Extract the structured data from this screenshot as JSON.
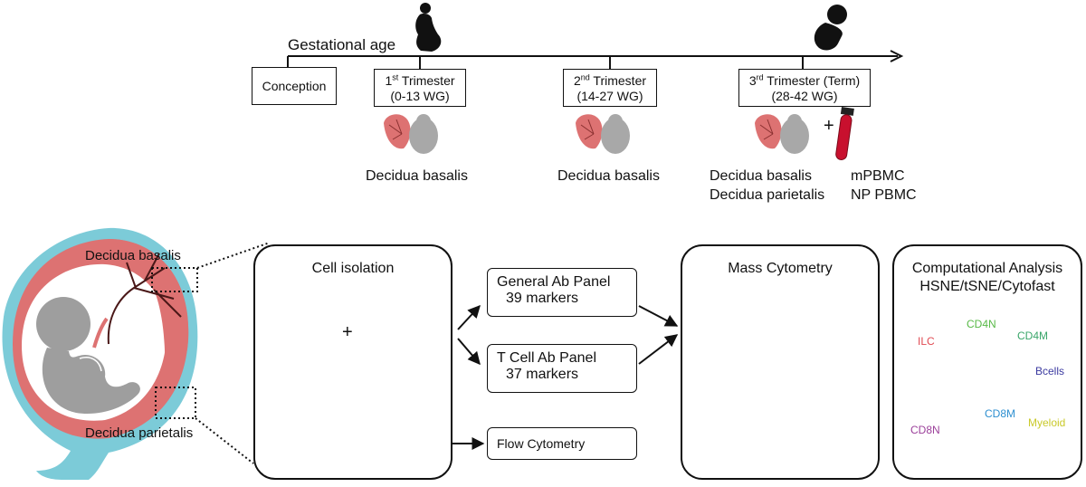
{
  "timeline": {
    "axis_label": "Gestational age",
    "conception": "Conception",
    "trimesters": [
      {
        "num": "1",
        "sup": "st",
        "name": "Trimester",
        "range": "(0-13 WG)",
        "samples": [
          "Decidua basalis"
        ]
      },
      {
        "num": "2",
        "sup": "nd",
        "name": "Trimester",
        "range": "(14-27 WG)",
        "samples": [
          "Decidua basalis"
        ]
      },
      {
        "num": "3",
        "sup": "rd",
        "name": "Trimester (Term)",
        "range": "(28-42 WG)",
        "samples": [
          "Decidua basalis",
          "Decidua parietalis"
        ]
      }
    ],
    "plus": "+",
    "blood_samples": [
      "mPBMC",
      "NP PBMC"
    ]
  },
  "uterus": {
    "label_top": "Decidua basalis",
    "label_bottom": "Decidua parietalis"
  },
  "workflow": {
    "cell_isolation": {
      "title": "Cell isolation",
      "plus": "+"
    },
    "general_panel": {
      "line1": "General Ab Panel",
      "line2": "39 markers"
    },
    "tcell_panel": {
      "line1": "T Cell Ab Panel",
      "line2": "37 markers"
    },
    "flow": "Flow Cytometry",
    "mass": {
      "title": "Mass Cytometry"
    },
    "computational": {
      "title1": "Computational Analysis",
      "title2": "HSNE/tSNE/Cytofast",
      "clusters": [
        {
          "label": "ILC",
          "color": "#e04a52"
        },
        {
          "label": "CD4N",
          "color": "#58b947"
        },
        {
          "label": "CD4M",
          "color": "#3aa66a"
        },
        {
          "label": "Bcells",
          "color": "#3b3aa0"
        },
        {
          "label": "CD8M",
          "color": "#2d8fd0"
        },
        {
          "label": "CD8N",
          "color": "#9b3f9a"
        },
        {
          "label": "Myeloid",
          "color": "#e0e04a"
        }
      ]
    }
  },
  "colors": {
    "placenta": "#dd7272",
    "fetus": "#9e9e9e",
    "uterus_wall": "#7ccbd8",
    "blood": "#c8102e",
    "bars": [
      "#c8102e",
      "#1f6fb2",
      "#e8a300",
      "#2a2a2a"
    ]
  }
}
